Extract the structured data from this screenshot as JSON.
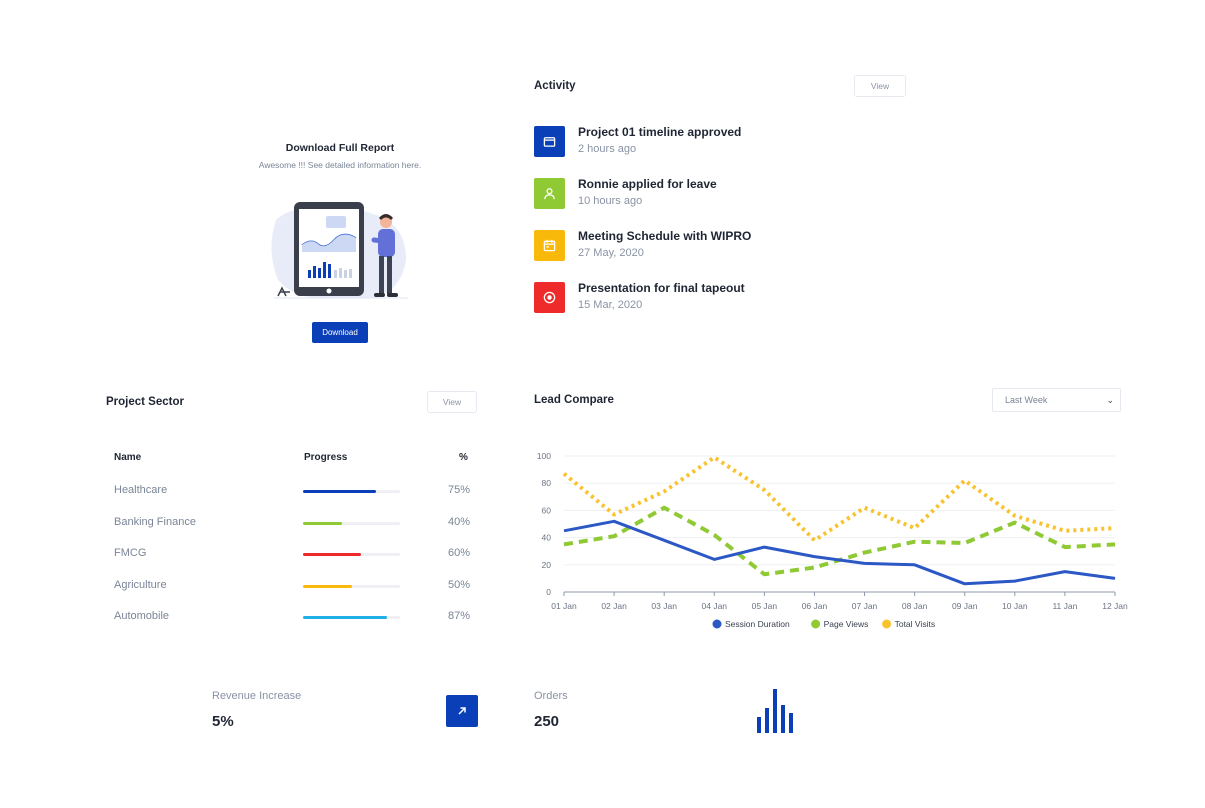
{
  "download_card": {
    "title": "Download Full Report",
    "subtitle": "Awesome !!! See detailed information here.",
    "button_label": "Download"
  },
  "activity": {
    "title": "Activity",
    "view_label": "View",
    "items": [
      {
        "title": "Project 01 timeline approved",
        "time": "2 hours ago",
        "icon": "folder-icon",
        "color": "#0a3fb7"
      },
      {
        "title": "Ronnie applied for leave",
        "time": "10 hours ago",
        "icon": "user-icon",
        "color": "#8fc934"
      },
      {
        "title": "Meeting Schedule with WIPRO",
        "time": "27 May, 2020",
        "icon": "calendar-icon",
        "color": "#f9b90b"
      },
      {
        "title": "Presentation for final tapeout",
        "time": "15 Mar, 2020",
        "icon": "target-icon",
        "color": "#ee2a2a"
      }
    ]
  },
  "project_sector": {
    "title": "Project Sector",
    "view_label": "View",
    "headers": {
      "name": "Name",
      "progress": "Progress",
      "percent": "%"
    },
    "rows": [
      {
        "name": "Healthcare",
        "percent_label": "75%",
        "value": 0.75,
        "color": "#0a3fb7"
      },
      {
        "name": "Banking Finance",
        "percent_label": "40%",
        "value": 0.4,
        "color": "#8fc934"
      },
      {
        "name": "FMCG",
        "percent_label": "60%",
        "value": 0.6,
        "color": "#ee2a2a"
      },
      {
        "name": "Agriculture",
        "percent_label": "50%",
        "value": 0.5,
        "color": "#f9b90b"
      },
      {
        "name": "Automobile",
        "percent_label": "87%",
        "value": 0.87,
        "color": "#1fb0e8"
      }
    ]
  },
  "lead_compare": {
    "title": "Lead Compare",
    "select_value": "Last Week"
  },
  "revenue": {
    "label": "Revenue Increase",
    "value": "5%"
  },
  "orders": {
    "label": "Orders",
    "value": "250",
    "spark": [
      16,
      25,
      44,
      28,
      20
    ]
  },
  "chart_data": {
    "type": "line",
    "x": [
      "01 Jan",
      "02 Jan",
      "03 Jan",
      "04 Jan",
      "05 Jan",
      "06 Jan",
      "07 Jan",
      "08 Jan",
      "09 Jan",
      "10 Jan",
      "11 Jan",
      "12 Jan"
    ],
    "ylim": [
      0,
      100
    ],
    "yticks": [
      0,
      20,
      40,
      60,
      80,
      100
    ],
    "grid": true,
    "legend": "bottom",
    "series": [
      {
        "name": "Session Duration",
        "values": [
          45,
          52,
          38,
          24,
          33,
          26,
          21,
          20,
          6,
          8,
          15,
          10
        ],
        "color": "#2b58c4",
        "dash": "solid"
      },
      {
        "name": "Page Views",
        "values": [
          35,
          41,
          62,
          42,
          13,
          18,
          29,
          37,
          36,
          51,
          33,
          35
        ],
        "color": "#8fc934",
        "dash": "dashed"
      },
      {
        "name": "Total Visits",
        "values": [
          87,
          57,
          74,
          99,
          75,
          38,
          62,
          47,
          82,
          56,
          45,
          47
        ],
        "color": "#f9c22e",
        "dash": "dotted"
      }
    ]
  }
}
